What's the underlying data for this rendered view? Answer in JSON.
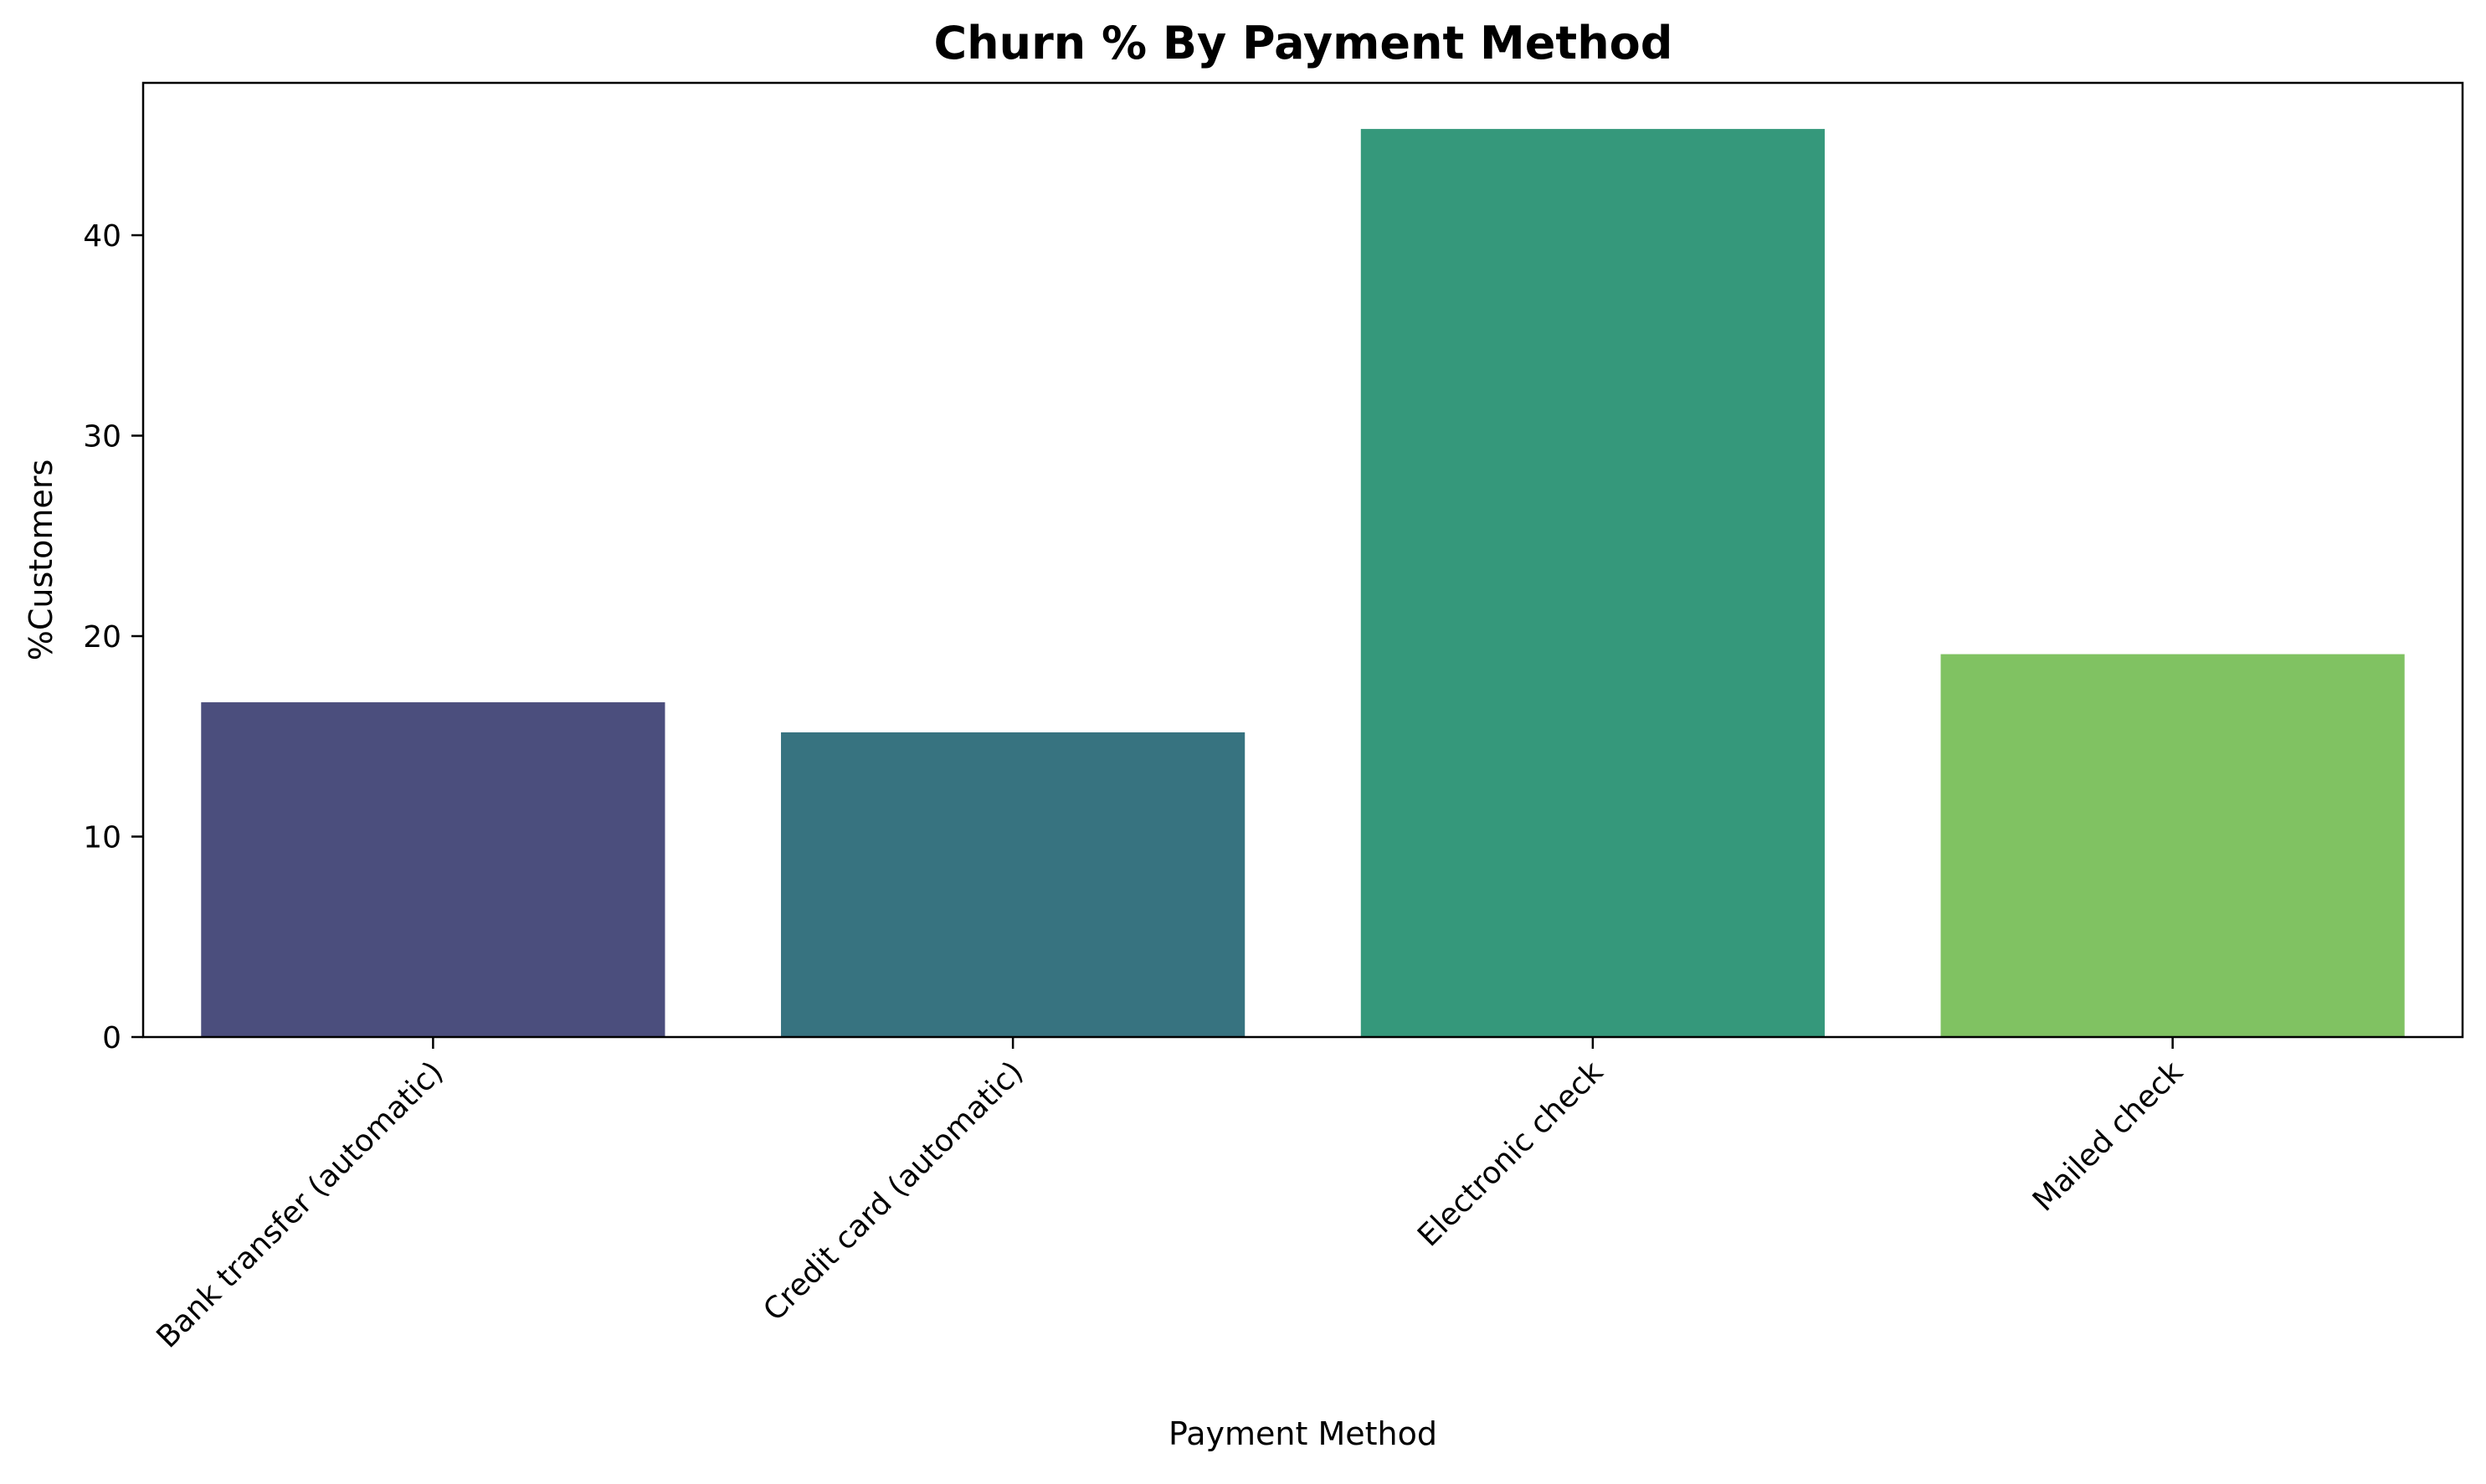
{
  "chart_data": {
    "type": "bar",
    "title": "Churn % By Payment Method",
    "xlabel": "Payment Method",
    "ylabel": "%Customers",
    "categories": [
      "Bank transfer (automatic)",
      "Credit card (automatic)",
      "Electronic check",
      "Mailed check"
    ],
    "values": [
      16.7,
      15.2,
      45.3,
      19.1
    ],
    "colors": [
      "#4b4e7d",
      "#377380",
      "#35987b",
      "#80c262"
    ],
    "ylim": [
      0,
      47.6
    ],
    "yticks": [
      0,
      10,
      20,
      30,
      40
    ],
    "grid": false,
    "legend": "none"
  }
}
